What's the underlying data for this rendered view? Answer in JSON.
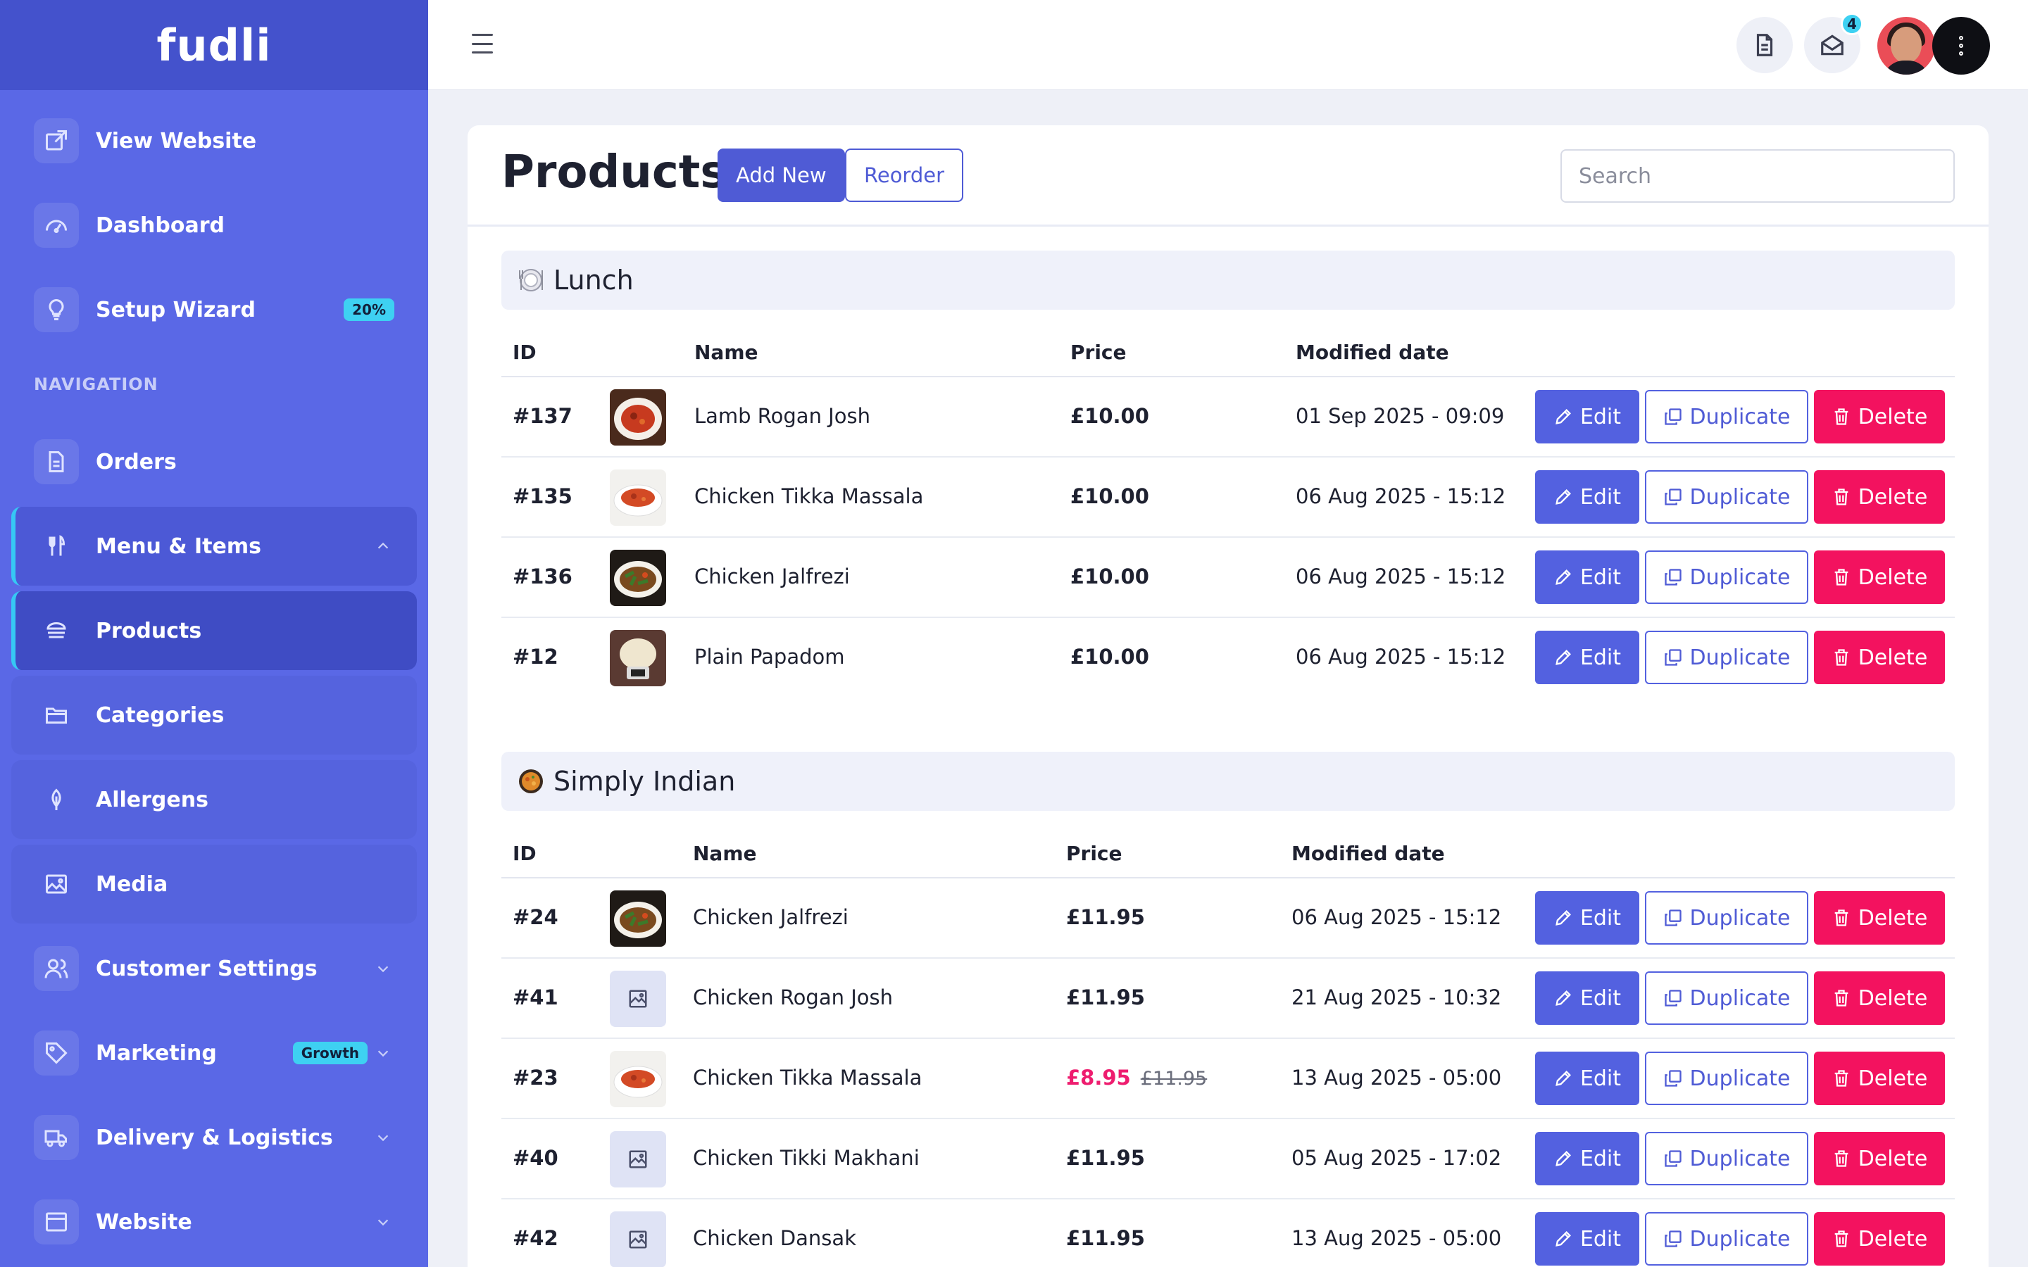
{
  "brand": {
    "logo": "fudli"
  },
  "sidebar": {
    "top_items": [
      {
        "label": "View Website",
        "icon": "external-link-icon"
      },
      {
        "label": "Dashboard",
        "icon": "speedometer-icon"
      },
      {
        "label": "Setup Wizard",
        "icon": "lightbulb-icon",
        "badge": "20%"
      }
    ],
    "section_label": "NAVIGATION",
    "items": [
      {
        "label": "Orders",
        "icon": "document-icon"
      },
      {
        "label": "Menu & Items",
        "icon": "fork-knife-icon",
        "state": "expanded"
      },
      {
        "label": "Products",
        "icon": "burger-icon",
        "state": "active"
      },
      {
        "label": "Categories",
        "icon": "folder-icon"
      },
      {
        "label": "Allergens",
        "icon": "leaf-icon"
      },
      {
        "label": "Media",
        "icon": "image-icon"
      },
      {
        "label": "Customer Settings",
        "icon": "users-icon"
      },
      {
        "label": "Marketing",
        "icon": "tag-icon",
        "badge": "Growth"
      },
      {
        "label": "Delivery & Logistics",
        "icon": "truck-icon"
      },
      {
        "label": "Website",
        "icon": "browser-icon"
      }
    ]
  },
  "topbar": {
    "notifications_count": "4",
    "icons": [
      "menu-icon",
      "document-icon",
      "mail-icon",
      "avatar",
      "more-vertical-icon"
    ]
  },
  "page": {
    "title": "Products",
    "add_new_label": "Add New",
    "reorder_label": "Reorder",
    "search_placeholder": "Search"
  },
  "table_headers": {
    "id": "ID",
    "name": "Name",
    "price": "Price",
    "modified": "Modified date"
  },
  "actions": {
    "edit": "Edit",
    "duplicate": "Duplicate",
    "delete": "Delete"
  },
  "sections": [
    {
      "name": "Lunch",
      "emoji_icon": "plate-icon",
      "products": [
        {
          "id": "#137",
          "name": "Lamb Rogan Josh",
          "price": "£10.00",
          "modified": "01 Sep 2025 - 09:09",
          "thumb": "curry-dark"
        },
        {
          "id": "#135",
          "name": "Chicken Tikka Massala",
          "price": "£10.00",
          "modified": "06 Aug 2025 - 15:12",
          "thumb": "curry-white"
        },
        {
          "id": "#136",
          "name": "Chicken Jalfrezi",
          "price": "£10.00",
          "modified": "06 Aug 2025 - 15:12",
          "thumb": "stirfry"
        },
        {
          "id": "#12",
          "name": "Plain Papadom",
          "price": "£10.00",
          "modified": "06 Aug 2025 - 15:12",
          "thumb": "papadom"
        }
      ]
    },
    {
      "name": "Simply Indian",
      "emoji_icon": "curry-icon",
      "products": [
        {
          "id": "#24",
          "name": "Chicken Jalfrezi",
          "price": "£11.95",
          "modified": "06 Aug 2025 - 15:12",
          "thumb": "stirfry"
        },
        {
          "id": "#41",
          "name": "Chicken Rogan Josh",
          "price": "£11.95",
          "modified": "21 Aug 2025 - 10:32",
          "thumb": "placeholder"
        },
        {
          "id": "#23",
          "name": "Chicken Tikka Massala",
          "price": "£8.95",
          "old_price": "£11.95",
          "modified": "13 Aug 2025 - 05:00",
          "thumb": "curry-white"
        },
        {
          "id": "#40",
          "name": "Chicken Tikki Makhani",
          "price": "£11.95",
          "modified": "05 Aug 2025 - 17:02",
          "thumb": "placeholder"
        },
        {
          "id": "#42",
          "name": "Chicken Dansak",
          "price": "£11.95",
          "modified": "13 Aug 2025 - 05:00",
          "thumb": "placeholder"
        }
      ]
    }
  ],
  "colors": {
    "sidebar": "#5a68e6",
    "accent": "#4f5bd5",
    "danger": "#f3125f",
    "badge": "#3ed1f2"
  }
}
